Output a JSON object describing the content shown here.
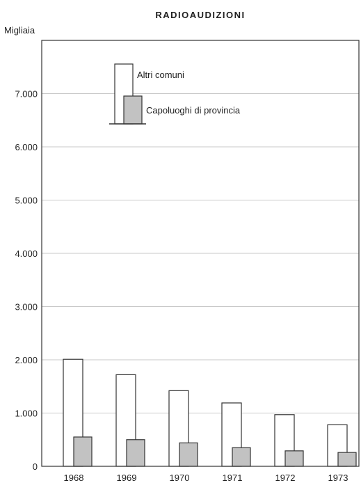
{
  "chart_data": {
    "type": "bar",
    "title": "RADIOAUDIZIONI",
    "ylabel": "Migliaia",
    "xlabel": "",
    "categories": [
      "1968",
      "1969",
      "1970",
      "1971",
      "1972",
      "1973"
    ],
    "series": [
      {
        "name": "Altri comuni",
        "values": [
          2010,
          1720,
          1420,
          1190,
          970,
          780
        ],
        "color": "#ffffff"
      },
      {
        "name": "Capoluoghi di provincia",
        "values": [
          550,
          500,
          440,
          350,
          290,
          260
        ],
        "color": "#c2c2c2"
      }
    ],
    "yticks": [
      {
        "value": 0,
        "label": "0"
      },
      {
        "value": 1000,
        "label": "1.000"
      },
      {
        "value": 2000,
        "label": "2.000"
      },
      {
        "value": 3000,
        "label": "3.000"
      },
      {
        "value": 4000,
        "label": "4.000"
      },
      {
        "value": 5000,
        "label": "5.000"
      },
      {
        "value": 6000,
        "label": "6.000"
      },
      {
        "value": 7000,
        "label": "7.000"
      }
    ],
    "ylim": [
      0,
      7900
    ],
    "grid": true,
    "legend_position": "top-center"
  }
}
